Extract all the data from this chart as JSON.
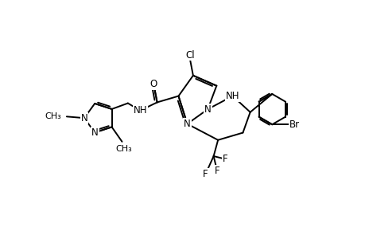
{
  "bg_color": "#ffffff",
  "line_color": "#000000",
  "line_width": 1.4,
  "font_size": 8.5,
  "figsize": [
    4.6,
    3.0
  ],
  "dpi": 100,
  "xlim": [
    0,
    10
  ],
  "ylim": [
    1.5,
    9.5
  ]
}
